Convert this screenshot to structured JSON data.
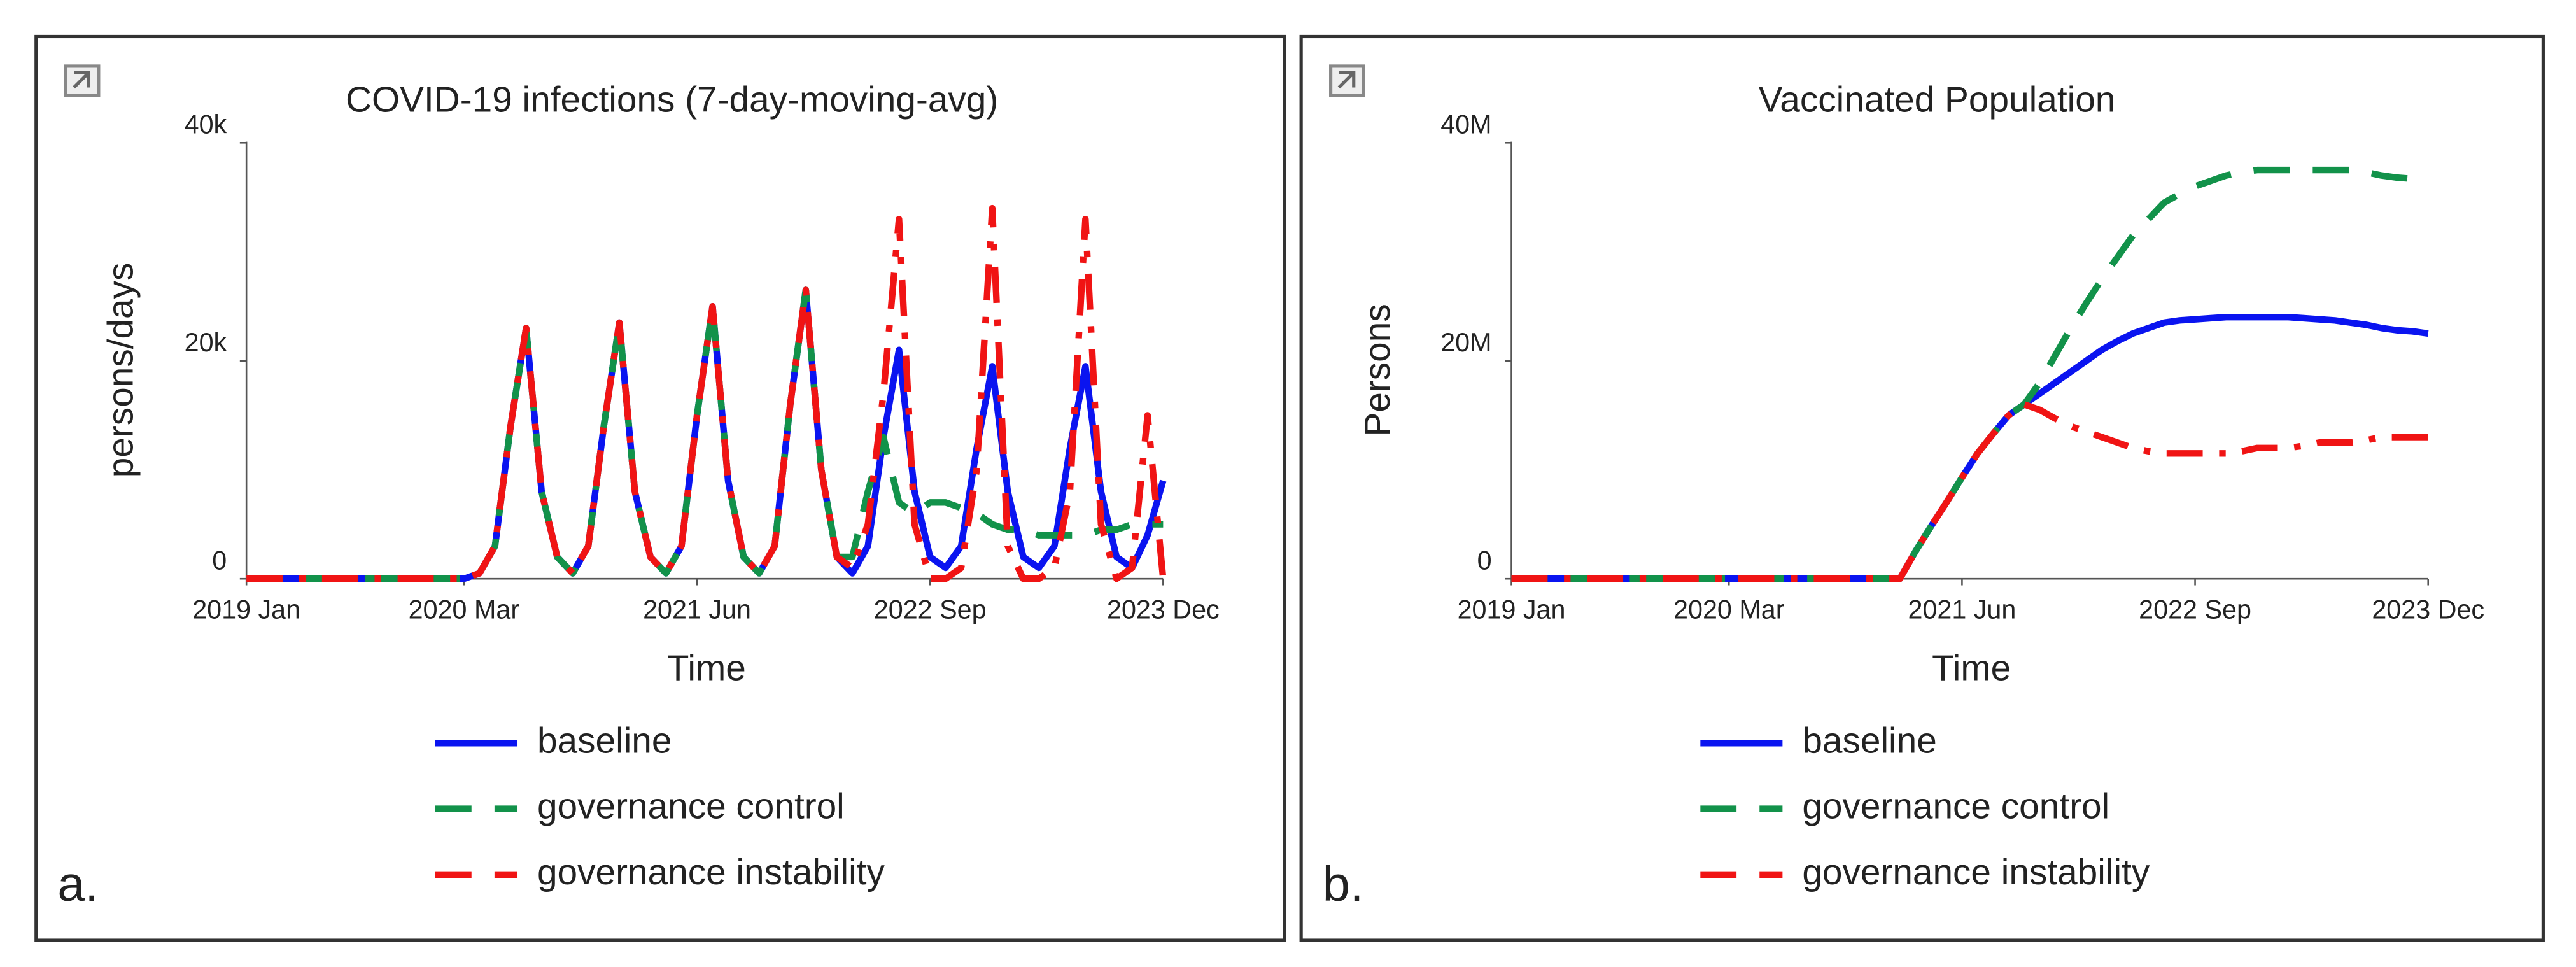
{
  "chart_data": [
    {
      "type": "line",
      "title": "COVID-19 infections (7-day-moving-avg)",
      "panel_label": "a.",
      "xlabel": "Time",
      "ylabel": "persons/days",
      "x": [
        "2019 Jan",
        "2019 Feb",
        "2019 Mar",
        "2019 Apr",
        "2019 May",
        "2019 Jun",
        "2019 Jul",
        "2019 Aug",
        "2019 Sep",
        "2019 Oct",
        "2019 Nov",
        "2019 Dec",
        "2020 Jan",
        "2020 Feb",
        "2020 Mar",
        "2020 Apr",
        "2020 May",
        "2020 Jun",
        "2020 Jul",
        "2020 Aug",
        "2020 Sep",
        "2020 Oct",
        "2020 Nov",
        "2020 Dec",
        "2021 Jan",
        "2021 Feb",
        "2021 Mar",
        "2021 Apr",
        "2021 May",
        "2021 Jun",
        "2021 Jul",
        "2021 Aug",
        "2021 Sep",
        "2021 Oct",
        "2021 Nov",
        "2021 Dec",
        "2022 Jan",
        "2022 Feb",
        "2022 Mar",
        "2022 Apr",
        "2022 May",
        "2022 Jun",
        "2022 Jul",
        "2022 Aug",
        "2022 Sep",
        "2022 Oct",
        "2022 Nov",
        "2022 Dec",
        "2023 Jan",
        "2023 Feb",
        "2023 Mar",
        "2023 Apr",
        "2023 May",
        "2023 Jun",
        "2023 Jul",
        "2023 Aug",
        "2023 Sep",
        "2023 Oct",
        "2023 Nov",
        "2023 Dec"
      ],
      "xticks": [
        "2019 Jan",
        "2020 Mar",
        "2021 Jun",
        "2022 Sep",
        "2023 Dec"
      ],
      "ylim": [
        0,
        41000
      ],
      "yticks": [
        0,
        {
          "value": 20000,
          "label": "20k"
        },
        {
          "value": 40000,
          "label": "40k"
        }
      ],
      "series": [
        {
          "name": "baseline",
          "color": "#0a14f0",
          "style": "solid",
          "values": [
            0,
            0,
            0,
            0,
            0,
            0,
            0,
            0,
            0,
            0,
            0,
            0,
            0,
            0,
            0,
            500,
            3000,
            14000,
            23000,
            8000,
            2000,
            500,
            3000,
            14000,
            23500,
            8000,
            2000,
            500,
            3000,
            15000,
            25000,
            9000,
            2000,
            500,
            3000,
            16000,
            26500,
            10000,
            2000,
            500,
            3000,
            13000,
            21000,
            8000,
            2000,
            1000,
            3000,
            12000,
            19500,
            8000,
            2000,
            1000,
            3000,
            12000,
            19500,
            8000,
            2000,
            1000,
            4000,
            9000
          ]
        },
        {
          "name": "governance control",
          "color": "#12924a",
          "style": "dashed",
          "values": [
            0,
            0,
            0,
            0,
            0,
            0,
            0,
            0,
            0,
            0,
            0,
            0,
            0,
            0,
            0,
            500,
            3000,
            14000,
            23000,
            8000,
            2000,
            500,
            3000,
            14000,
            23500,
            8000,
            2000,
            500,
            3000,
            15000,
            25000,
            9000,
            2000,
            500,
            3000,
            16000,
            26500,
            10000,
            2000,
            2000,
            8000,
            13000,
            7000,
            6000,
            7000,
            7000,
            6500,
            6000,
            5000,
            4500,
            4500,
            4000,
            4000,
            4000,
            4000,
            4500,
            4500,
            5000,
            5000,
            5000
          ]
        },
        {
          "name": "governance instability",
          "color": "#f01414",
          "style": "dashdot",
          "values": [
            0,
            0,
            0,
            0,
            0,
            0,
            0,
            0,
            0,
            0,
            0,
            0,
            0,
            0,
            0,
            500,
            3000,
            14000,
            23000,
            8000,
            2000,
            500,
            3000,
            14000,
            23500,
            8000,
            2000,
            500,
            3000,
            15000,
            25000,
            9000,
            2000,
            500,
            3000,
            16000,
            26500,
            10000,
            2000,
            1000,
            5000,
            17000,
            33000,
            5000,
            0,
            0,
            1000,
            10000,
            34000,
            3000,
            0,
            0,
            1000,
            8000,
            33000,
            5000,
            0,
            1000,
            15000,
            0
          ]
        }
      ]
    },
    {
      "type": "line",
      "title": "Vaccinated Population",
      "panel_label": "b.",
      "xlabel": "Time",
      "ylabel": "Persons",
      "x": [
        "2019 Jan",
        "2019 Feb",
        "2019 Mar",
        "2019 Apr",
        "2019 May",
        "2019 Jun",
        "2019 Jul",
        "2019 Aug",
        "2019 Sep",
        "2019 Oct",
        "2019 Nov",
        "2019 Dec",
        "2020 Jan",
        "2020 Feb",
        "2020 Mar",
        "2020 Apr",
        "2020 May",
        "2020 Jun",
        "2020 Jul",
        "2020 Aug",
        "2020 Sep",
        "2020 Oct",
        "2020 Nov",
        "2020 Dec",
        "2021 Jan",
        "2021 Feb",
        "2021 Mar",
        "2021 Apr",
        "2021 May",
        "2021 Jun",
        "2021 Jul",
        "2021 Aug",
        "2021 Sep",
        "2021 Oct",
        "2021 Nov",
        "2021 Dec",
        "2022 Jan",
        "2022 Feb",
        "2022 Mar",
        "2022 Apr",
        "2022 May",
        "2022 Jun",
        "2022 Jul",
        "2022 Aug",
        "2022 Sep",
        "2022 Oct",
        "2022 Nov",
        "2022 Dec",
        "2023 Jan",
        "2023 Feb",
        "2023 Mar",
        "2023 Apr",
        "2023 May",
        "2023 Jun",
        "2023 Jul",
        "2023 Aug",
        "2023 Sep",
        "2023 Oct",
        "2023 Nov",
        "2023 Dec"
      ],
      "xticks": [
        "2019 Jan",
        "2020 Mar",
        "2021 Jun",
        "2022 Sep",
        "2023 Dec"
      ],
      "ylim": [
        0,
        41000000
      ],
      "yticks": [
        0,
        {
          "value": 20000000,
          "label": "20M"
        },
        {
          "value": 40000000,
          "label": "40M"
        }
      ],
      "series": [
        {
          "name": "baseline",
          "color": "#0a14f0",
          "style": "solid",
          "values": [
            0,
            0,
            0,
            0,
            0,
            0,
            0,
            0,
            0,
            0,
            0,
            0,
            0,
            0,
            0,
            0,
            0,
            0,
            0,
            0,
            0,
            0,
            0,
            0,
            0,
            0,
            2500000,
            4800000,
            7000000,
            9300000,
            11500000,
            13300000,
            15000000,
            16000000,
            17000000,
            18000000,
            19000000,
            20000000,
            21000000,
            21800000,
            22500000,
            23000000,
            23500000,
            23700000,
            23800000,
            23900000,
            24000000,
            24000000,
            24000000,
            24000000,
            24000000,
            23900000,
            23800000,
            23700000,
            23500000,
            23300000,
            23000000,
            22800000,
            22700000,
            22500000
          ]
        },
        {
          "name": "governance control",
          "color": "#12924a",
          "style": "dashed",
          "values": [
            0,
            0,
            0,
            0,
            0,
            0,
            0,
            0,
            0,
            0,
            0,
            0,
            0,
            0,
            0,
            0,
            0,
            0,
            0,
            0,
            0,
            0,
            0,
            0,
            0,
            0,
            2500000,
            4800000,
            7000000,
            9300000,
            11500000,
            13300000,
            15000000,
            16000000,
            18000000,
            20500000,
            23000000,
            25300000,
            27500000,
            29500000,
            31500000,
            33000000,
            34500000,
            35300000,
            36000000,
            36500000,
            37000000,
            37300000,
            37500000,
            37500000,
            37500000,
            37500000,
            37500000,
            37500000,
            37500000,
            37300000,
            37000000,
            36800000,
            36700000,
            36500000
          ]
        },
        {
          "name": "governance instability",
          "color": "#f01414",
          "style": "dashdot",
          "values": [
            0,
            0,
            0,
            0,
            0,
            0,
            0,
            0,
            0,
            0,
            0,
            0,
            0,
            0,
            0,
            0,
            0,
            0,
            0,
            0,
            0,
            0,
            0,
            0,
            0,
            0,
            2500000,
            4800000,
            7000000,
            9300000,
            11500000,
            13300000,
            15000000,
            16000000,
            15500000,
            14700000,
            14000000,
            13500000,
            13000000,
            12500000,
            12000000,
            11700000,
            11500000,
            11500000,
            11500000,
            11500000,
            11500000,
            11700000,
            12000000,
            12000000,
            12000000,
            12200000,
            12500000,
            12500000,
            12500000,
            12700000,
            13000000,
            13000000,
            13000000,
            13000000
          ]
        }
      ]
    }
  ]
}
